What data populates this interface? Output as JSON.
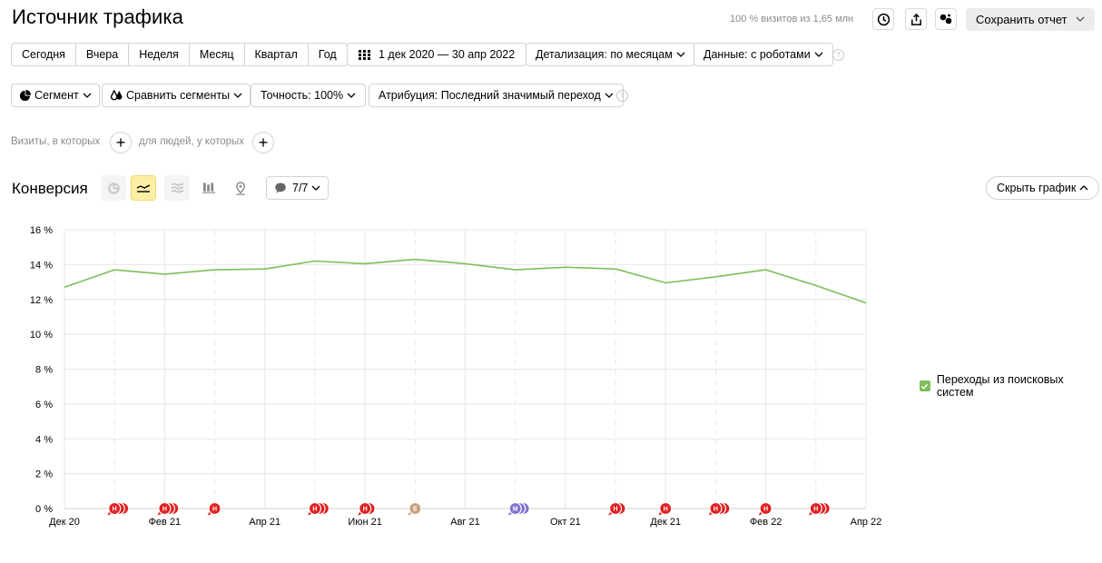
{
  "header": {
    "title": "Источник трафика",
    "visits_info": "100 % визитов из 1,65 млн",
    "save_label": "Сохранить отчет"
  },
  "period_buttons": [
    "Сегодня",
    "Вчера",
    "Неделя",
    "Месяц",
    "Квартал",
    "Год"
  ],
  "filters": {
    "date_range": "1 дек 2020 — 30 апр 2022",
    "detail": "Детализация: по месяцам",
    "data": "Данные: с роботами",
    "segment": "Сегмент",
    "compare": "Сравнить сегменты",
    "accuracy": "Точность: 100%",
    "attribution": "Атрибуция: Последний значимый переход",
    "help_glyph": "?"
  },
  "segment_builder": {
    "visits_label": "Визиты, в которых",
    "people_label": "для людей, у которых",
    "plus_glyph": "+"
  },
  "chart_section": {
    "title": "Конверсия",
    "notes_count": "7/7",
    "hide_label": "Скрыть график"
  },
  "colors": {
    "series": "#7dbf5a",
    "marker_red": "#e02020",
    "marker_tan": "#c9a07a",
    "marker_purple": "#8070d0"
  },
  "chart_data": {
    "type": "line",
    "title": "",
    "xlabel": "",
    "ylabel": "",
    "ylim": [
      0,
      16
    ],
    "yticks": [
      "16 %",
      "14 %",
      "12 %",
      "10 %",
      "8 %",
      "6 %",
      "4 %",
      "2 %",
      "0 %"
    ],
    "x": [
      "2020-12",
      "2021-01",
      "2021-02",
      "2021-03",
      "2021-04",
      "2021-05",
      "2021-06",
      "2021-07",
      "2021-08",
      "2021-09",
      "2021-10",
      "2021-11",
      "2021-12",
      "2022-01",
      "2022-02",
      "2022-03",
      "2022-04"
    ],
    "xtick_labels": [
      "Дек 20",
      "Фев 21",
      "Апр 21",
      "Июн 21",
      "Авг 21",
      "Окт 21",
      "Дек 21",
      "Фев 22",
      "Апр 22"
    ],
    "series": [
      {
        "name": "Переходы из поисковых систем",
        "values": [
          12.7,
          13.7,
          13.45,
          13.7,
          13.75,
          14.2,
          14.05,
          14.3,
          14.05,
          13.7,
          13.85,
          13.75,
          12.95,
          13.3,
          13.7,
          12.8,
          11.8
        ]
      }
    ],
    "grid": true,
    "legend": "right",
    "annotations": [
      {
        "x": "2021-01",
        "letter": "Н",
        "count": 3,
        "color": "red"
      },
      {
        "x": "2021-02",
        "letter": "Н",
        "count": 3,
        "color": "red"
      },
      {
        "x": "2021-03",
        "letter": "Н",
        "count": 1,
        "color": "red"
      },
      {
        "x": "2021-05",
        "letter": "Н",
        "count": 3,
        "color": "red"
      },
      {
        "x": "2021-06",
        "letter": "Н",
        "count": 2,
        "color": "red"
      },
      {
        "x": "2021-07",
        "letter": "Е",
        "count": 1,
        "color": "tan"
      },
      {
        "x": "2021-09",
        "letter": "М",
        "count": 3,
        "color": "purple"
      },
      {
        "x": "2021-11",
        "letter": "Н",
        "count": 2,
        "color": "red"
      },
      {
        "x": "2021-12",
        "letter": "Н",
        "count": 1,
        "color": "red"
      },
      {
        "x": "2022-01",
        "letter": "Н",
        "count": 3,
        "color": "red"
      },
      {
        "x": "2022-02",
        "letter": "Н",
        "count": 1,
        "color": "red"
      },
      {
        "x": "2022-03",
        "letter": "Н",
        "count": 3,
        "color": "red"
      }
    ]
  }
}
